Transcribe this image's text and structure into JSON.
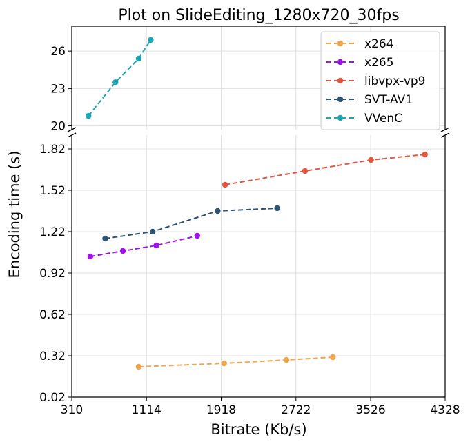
{
  "chart_data": {
    "type": "line",
    "title": "Plot on SlideEditing_1280x720_30fps",
    "xlabel": "Bitrate (Kb/s)",
    "ylabel": "Encoding time (s)",
    "xlim": [
      310,
      4328
    ],
    "x_ticks": [
      310,
      1114,
      1918,
      2722,
      3526,
      4328
    ],
    "x_tick_labels": [
      "310",
      "1114",
      "1918",
      "2722",
      "3526",
      "4328"
    ],
    "upper_panel": {
      "ylim": [
        19.7,
        28.0
      ],
      "y_ticks": [
        20,
        23,
        26
      ],
      "y_tick_labels": [
        "20",
        "23",
        "26"
      ]
    },
    "lower_panel": {
      "ylim": [
        0.02,
        1.92
      ],
      "y_ticks": [
        0.02,
        0.32,
        0.62,
        0.92,
        1.22,
        1.52,
        1.82
      ],
      "y_tick_labels": [
        "0.02",
        "0.32",
        "0.62",
        "0.92",
        "1.22",
        "1.52",
        "1.82"
      ]
    },
    "broken_y_axis": true,
    "grid": true,
    "legend_position": "top-right",
    "series": [
      {
        "name": "x264",
        "color": "#f0a64d",
        "panel": "lower",
        "points": [
          [
            1030,
            0.24
          ],
          [
            1950,
            0.265
          ],
          [
            2620,
            0.29
          ],
          [
            3120,
            0.31
          ]
        ]
      },
      {
        "name": "x265",
        "color": "#a012e8",
        "panel": "lower",
        "points": [
          [
            510,
            1.04
          ],
          [
            860,
            1.08
          ],
          [
            1220,
            1.12
          ],
          [
            1660,
            1.19
          ]
        ]
      },
      {
        "name": "libvpx-vp9",
        "color": "#e2553f",
        "panel": "lower",
        "points": [
          [
            1960,
            1.56
          ],
          [
            2820,
            1.66
          ],
          [
            3530,
            1.74
          ],
          [
            4110,
            1.78
          ]
        ]
      },
      {
        "name": "SVT-AV1",
        "color": "#2c5475",
        "panel": "lower",
        "points": [
          [
            670,
            1.17
          ],
          [
            1180,
            1.22
          ],
          [
            1880,
            1.37
          ],
          [
            2520,
            1.39
          ]
        ]
      },
      {
        "name": "VVenC",
        "color": "#1aa7b5",
        "panel": "upper",
        "points": [
          [
            490,
            20.8
          ],
          [
            780,
            23.5
          ],
          [
            1030,
            25.4
          ],
          [
            1160,
            26.9
          ]
        ]
      }
    ]
  }
}
